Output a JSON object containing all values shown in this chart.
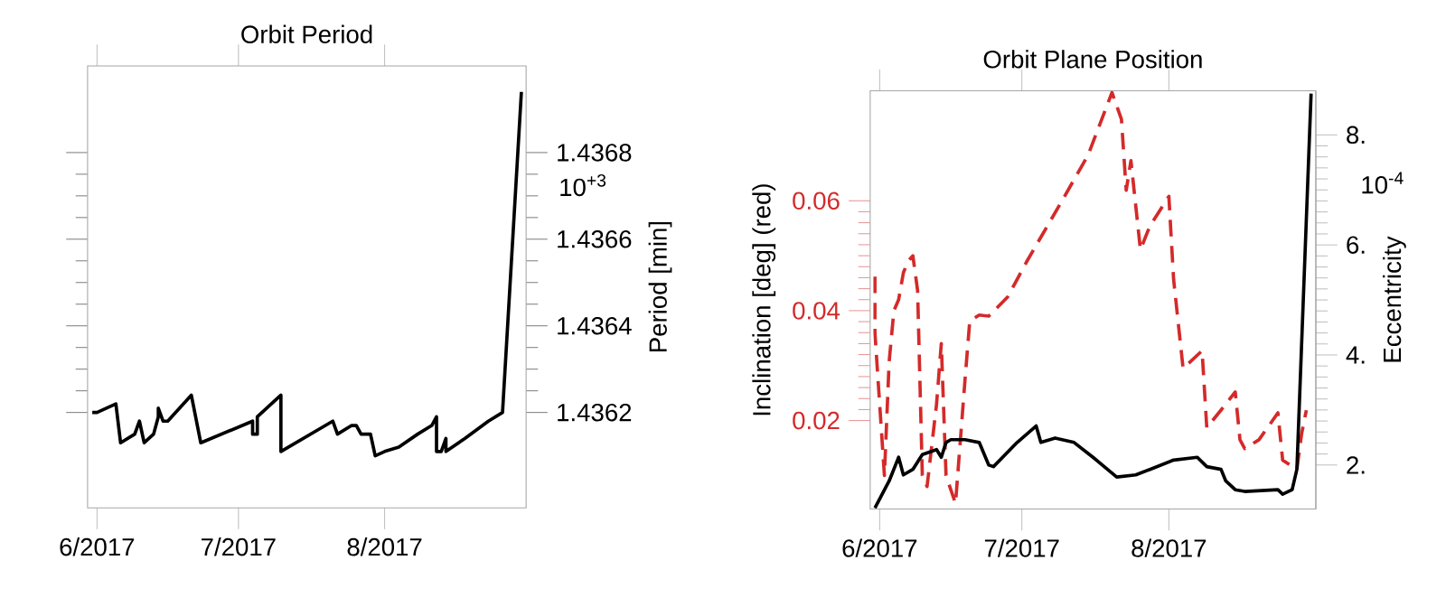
{
  "chart_data": [
    {
      "type": "line",
      "title": "Orbit Period",
      "ylabel": "Period [min]",
      "series": [
        {
          "color": "#000000",
          "x": [
            "2017-05-31",
            "2017-06-01",
            "2017-06-05",
            "2017-06-06",
            "2017-06-09",
            "2017-06-10",
            "2017-06-11",
            "2017-06-13",
            "2017-06-14",
            "2017-06-14",
            "2017-06-15",
            "2017-06-16",
            "2017-06-21",
            "2017-06-23",
            "2017-07-04",
            "2017-07-04",
            "2017-07-05",
            "2017-07-05",
            "2017-07-10",
            "2017-07-10",
            "2017-07-21",
            "2017-07-22",
            "2017-07-25",
            "2017-07-26",
            "2017-07-27",
            "2017-07-29",
            "2017-07-30",
            "2017-08-01",
            "2017-08-04",
            "2017-08-08",
            "2017-08-11",
            "2017-08-12",
            "2017-08-12",
            "2017-08-13",
            "2017-08-14",
            "2017-08-14",
            "2017-08-18",
            "2017-08-23",
            "2017-08-26",
            "2017-08-30"
          ],
          "values": [
            1.4362,
            1.4362,
            1.43622,
            1.43613,
            1.43615,
            1.43618,
            1.43613,
            1.43615,
            1.43619,
            1.43621,
            1.43618,
            1.43618,
            1.43624,
            1.43613,
            1.43618,
            1.43615,
            1.43615,
            1.43619,
            1.43624,
            1.43611,
            1.43618,
            1.43615,
            1.43617,
            1.43617,
            1.43615,
            1.43615,
            1.4361,
            1.43611,
            1.43612,
            1.43615,
            1.43617,
            1.43619,
            1.43611,
            1.43611,
            1.43614,
            1.43611,
            1.43614,
            1.43618,
            1.4362,
            1.43694
          ]
        }
      ],
      "xlim": [
        "2017-05-30",
        "2017-08-31"
      ],
      "xticks": [
        {
          "value": "2017-06-01",
          "label": "6/2017"
        },
        {
          "value": "2017-07-01",
          "label": "7/2017"
        },
        {
          "value": "2017-08-01",
          "label": "8/2017"
        }
      ],
      "ylim": [
        1.43598,
        1.437
      ],
      "yticks": [
        1.4362,
        1.4364,
        1.4366,
        1.4368
      ],
      "annotations": [
        "10$^{+3}$"
      ]
    },
    {
      "type": "line",
      "title": "Orbit Plane Position",
      "ylabel": "Inclination [deg] (red)",
      "y2label": "Eccentricity",
      "series": [
        {
          "color": "#d42a2a",
          "line_style": "dashed",
          "x": [
            "2017-05-31",
            "2017-05-31",
            "2017-06-02",
            "2017-06-03",
            "2017-06-04",
            "2017-06-05",
            "2017-06-06",
            "2017-06-07",
            "2017-06-08",
            "2017-06-09",
            "2017-06-10",
            "2017-06-11",
            "2017-06-12",
            "2017-06-13",
            "2017-06-14",
            "2017-06-15",
            "2017-06-17",
            "2017-06-19",
            "2017-06-20",
            "2017-06-22",
            "2017-06-24",
            "2017-06-28",
            "2017-07-02",
            "2017-07-10",
            "2017-07-15",
            "2017-07-20",
            "2017-07-22",
            "2017-07-23",
            "2017-07-24",
            "2017-07-26",
            "2017-07-28",
            "2017-08-01",
            "2017-08-02",
            "2017-08-04",
            "2017-08-08",
            "2017-08-09",
            "2017-08-12",
            "2017-08-15",
            "2017-08-16",
            "2017-08-17",
            "2017-08-20",
            "2017-08-24",
            "2017-08-25",
            "2017-08-28",
            "2017-08-29",
            "2017-08-30"
          ],
          "values": [
            0.0462,
            0.036,
            0.01,
            0.0307,
            0.04,
            0.042,
            0.0469,
            0.049,
            0.05,
            0.0437,
            0.01,
            0.008,
            0.0155,
            0.023,
            0.034,
            0.01,
            0.0049,
            0.0274,
            0.0381,
            0.0392,
            0.039,
            0.0425,
            0.0489,
            0.0608,
            0.0684,
            0.0797,
            0.0748,
            0.0619,
            0.0673,
            0.0511,
            0.0554,
            0.0608,
            0.0457,
            0.0295,
            0.0327,
            0.0187,
            0.0219,
            0.0252,
            0.0165,
            0.0149,
            0.0165,
            0.0214,
            0.0128,
            0.0111,
            0.0176,
            0.0219
          ]
        },
        {
          "color": "#000000",
          "axis": "y2",
          "x": [
            "2017-05-31",
            "2017-06-03",
            "2017-06-05",
            "2017-06-06",
            "2017-06-08",
            "2017-06-10",
            "2017-06-13",
            "2017-06-14",
            "2017-06-15",
            "2017-06-16",
            "2017-06-19",
            "2017-06-22",
            "2017-06-24",
            "2017-06-25",
            "2017-06-30",
            "2017-07-04",
            "2017-07-05",
            "2017-07-08",
            "2017-07-12",
            "2017-07-16",
            "2017-07-21",
            "2017-07-25",
            "2017-07-28",
            "2017-08-02",
            "2017-08-07",
            "2017-08-09",
            "2017-08-12",
            "2017-08-13",
            "2017-08-15",
            "2017-08-17",
            "2017-08-24",
            "2017-08-25",
            "2017-08-27",
            "2017-08-28",
            "2017-08-31"
          ],
          "values": [
            1.22,
            1.71,
            2.14,
            1.82,
            1.92,
            2.19,
            2.28,
            2.14,
            2.41,
            2.46,
            2.46,
            2.41,
            2.0,
            1.97,
            2.41,
            2.71,
            2.41,
            2.49,
            2.41,
            2.14,
            1.78,
            1.82,
            1.92,
            2.09,
            2.14,
            1.97,
            1.92,
            1.71,
            1.55,
            1.52,
            1.55,
            1.47,
            1.55,
            1.92,
            8.75
          ]
        }
      ],
      "xlim": [
        "2017-05-30",
        "2017-09-01"
      ],
      "xticks": [
        {
          "value": "2017-06-01",
          "label": "6/2017"
        },
        {
          "value": "2017-07-01",
          "label": "7/2017"
        },
        {
          "value": "2017-08-01",
          "label": "8/2017"
        }
      ],
      "ylim": [
        0.0039,
        0.08
      ],
      "yticks": [
        0.02,
        0.04,
        0.06
      ],
      "y2lim": [
        1.2,
        8.8
      ],
      "y2ticks": [
        {
          "value": 2,
          "label": "2."
        },
        {
          "value": 4,
          "label": "4."
        },
        {
          "value": 6,
          "label": "6."
        },
        {
          "value": 8,
          "label": "8."
        }
      ],
      "annotations": [
        "10$^{-4}$"
      ]
    }
  ]
}
